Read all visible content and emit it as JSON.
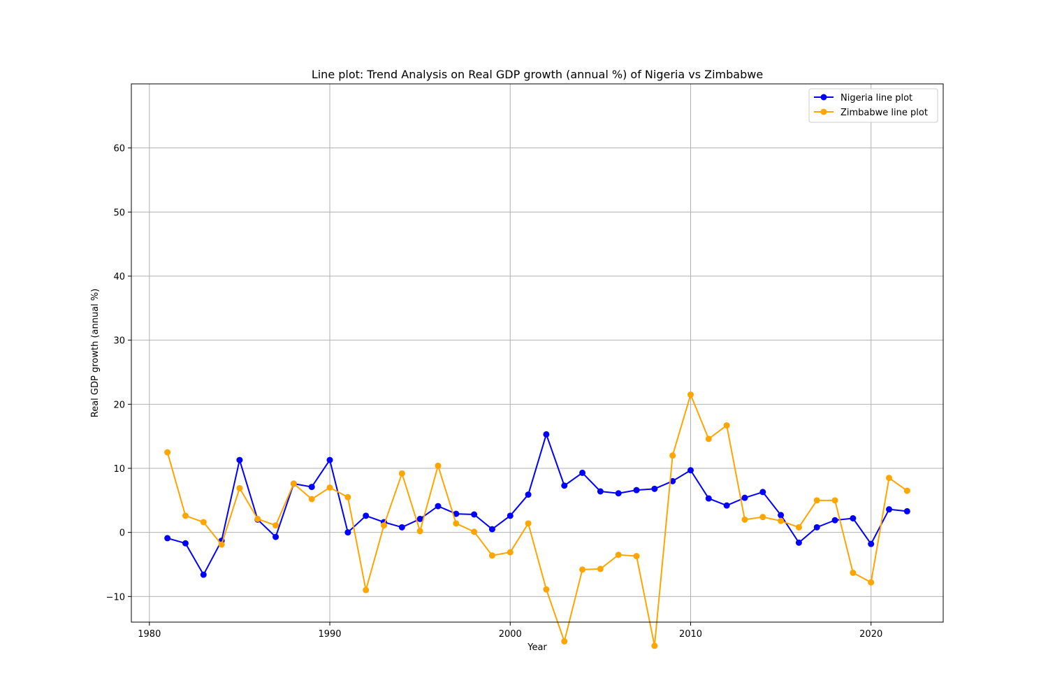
{
  "chart_data": {
    "type": "line",
    "title": "Line plot: Trend Analysis on Real GDP growth (annual %) of Nigeria vs Zimbabwe",
    "xlabel": "Year",
    "ylabel": "Real GDP growth (annual %)",
    "xlim": [
      1979,
      2024
    ],
    "ylim": [
      -14,
      70
    ],
    "xticks": [
      1980,
      1990,
      2000,
      2010,
      2020
    ],
    "yticks": [
      -10,
      0,
      10,
      20,
      30,
      40,
      50,
      60
    ],
    "ytick_labels": [
      "−10",
      "0",
      "10",
      "20",
      "30",
      "40",
      "50",
      "60"
    ],
    "grid": true,
    "legend_position": "top-right",
    "x": [
      1981,
      1982,
      1983,
      1984,
      1985,
      1986,
      1987,
      1988,
      1989,
      1990,
      1991,
      1992,
      1993,
      1994,
      1995,
      1996,
      1997,
      1998,
      1999,
      2000,
      2001,
      2002,
      2003,
      2004,
      2005,
      2006,
      2007,
      2008,
      2009,
      2010,
      2011,
      2012,
      2013,
      2014,
      2015,
      2016,
      2017,
      2018,
      2019,
      2020,
      2021,
      2022
    ],
    "series": [
      {
        "name": "Nigeria line plot",
        "color": "#0000ff",
        "values": [
          -0.9,
          -1.7,
          -6.6,
          -1.3,
          11.3,
          2.0,
          -0.7,
          7.6,
          7.1,
          11.3,
          0.0,
          2.6,
          1.6,
          0.8,
          2.1,
          4.1,
          2.9,
          2.8,
          0.5,
          2.6,
          5.9,
          15.3,
          7.3,
          9.3,
          6.4,
          6.1,
          6.6,
          6.8,
          8.0,
          9.7,
          5.3,
          4.2,
          5.4,
          6.3,
          2.7,
          -1.6,
          0.8,
          1.9,
          2.2,
          -1.8,
          3.6,
          3.3
        ]
      },
      {
        "name": "Zimbabwe line plot",
        "color": "#ffa500",
        "values": [
          12.5,
          2.6,
          1.6,
          -1.9,
          6.9,
          2.1,
          1.1,
          7.6,
          5.2,
          7.0,
          5.5,
          -9.0,
          1.1,
          9.2,
          0.2,
          10.4,
          1.4,
          0.1,
          -3.6,
          -3.1,
          1.4,
          -8.9,
          -17.0,
          -5.8,
          -5.7,
          -3.5,
          -3.7,
          -17.7,
          12.0,
          21.5,
          14.6,
          16.7,
          2.0,
          2.4,
          1.8,
          0.8,
          5.0,
          5.0,
          -6.3,
          -7.8,
          8.5,
          6.5
        ]
      }
    ]
  }
}
